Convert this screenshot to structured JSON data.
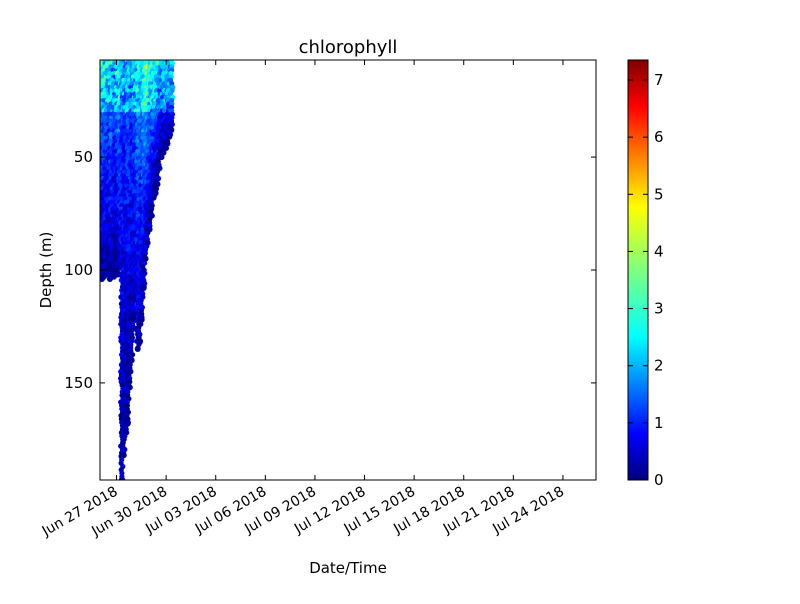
{
  "chart_data": {
    "type": "scatter",
    "title": "chlorophyll",
    "xlabel": "Date/Time",
    "ylabel": "Depth (m)",
    "x_axis": {
      "type": "date",
      "range": [
        "2018-06-26",
        "2018-07-26"
      ],
      "tick_dates": [
        "2018-06-27",
        "2018-06-30",
        "2018-07-03",
        "2018-07-06",
        "2018-07-09",
        "2018-07-12",
        "2018-07-15",
        "2018-07-18",
        "2018-07-21",
        "2018-07-24"
      ],
      "tick_labels": [
        "Jun 27 2018",
        "Jun 30 2018",
        "Jul 03 2018",
        "Jul 06 2018",
        "Jul 09 2018",
        "Jul 12 2018",
        "Jul 15 2018",
        "Jul 18 2018",
        "Jul 21 2018",
        "Jul 24 2018"
      ]
    },
    "y_axis": {
      "range": [
        7,
        193
      ],
      "inverted": true,
      "ticks": [
        50,
        100,
        150
      ],
      "tick_labels": [
        "50",
        "100",
        "150"
      ]
    },
    "colorbar": {
      "colormap": "jet",
      "range": [
        0,
        7.35
      ],
      "ticks": [
        0,
        1,
        2,
        3,
        4,
        5,
        6,
        7
      ],
      "tick_labels": [
        "0",
        "1",
        "2",
        "3",
        "4",
        "5",
        "6",
        "7"
      ]
    },
    "profiles": [
      {
        "date": "2018-06-26",
        "max_depth": 102,
        "surface_value": 2.3
      },
      {
        "date": "2018-06-26.12",
        "max_depth": 104,
        "surface_value": 2.1
      },
      {
        "date": "2018-06-26.24",
        "max_depth": 103,
        "surface_value": 1.9
      },
      {
        "date": "2018-06-26.36",
        "max_depth": 100,
        "surface_value": 2.0
      },
      {
        "date": "2018-06-26.48",
        "max_depth": 102,
        "surface_value": 1.8
      },
      {
        "date": "2018-06-26.6",
        "max_depth": 104,
        "surface_value": 1.7
      },
      {
        "date": "2018-06-26.72",
        "max_depth": 101,
        "surface_value": 2.2
      },
      {
        "date": "2018-06-26.84",
        "max_depth": 103,
        "surface_value": 1.6
      },
      {
        "date": "2018-06-26.96",
        "max_depth": 100,
        "surface_value": 1.5
      },
      {
        "date": "2018-06-27.08",
        "max_depth": 102,
        "surface_value": 1.9
      },
      {
        "date": "2018-06-27.2",
        "max_depth": 99,
        "surface_value": 2.4
      },
      {
        "date": "2018-06-27.32",
        "max_depth": 193,
        "surface_value": 1.4
      },
      {
        "date": "2018-06-27.44",
        "max_depth": 182,
        "surface_value": 1.3
      },
      {
        "date": "2018-06-27.56",
        "max_depth": 172,
        "surface_value": 1.2
      },
      {
        "date": "2018-06-27.68",
        "max_depth": 168,
        "surface_value": 1.5
      },
      {
        "date": "2018-06-27.8",
        "max_depth": 152,
        "surface_value": 1.6
      },
      {
        "date": "2018-06-27.92",
        "max_depth": 140,
        "surface_value": 1.4
      },
      {
        "date": "2018-06-28.04",
        "max_depth": 126,
        "surface_value": 1.7
      },
      {
        "date": "2018-06-28.16",
        "max_depth": 113,
        "surface_value": 1.8
      },
      {
        "date": "2018-06-28.28",
        "max_depth": 135,
        "surface_value": 2.0
      },
      {
        "date": "2018-06-28.4",
        "max_depth": 132,
        "surface_value": 2.2
      },
      {
        "date": "2018-06-28.52",
        "max_depth": 122,
        "surface_value": 1.9
      },
      {
        "date": "2018-06-28.64",
        "max_depth": 108,
        "surface_value": 2.5
      },
      {
        "date": "2018-06-28.76",
        "max_depth": 95,
        "surface_value": 2.8
      },
      {
        "date": "2018-06-28.88",
        "max_depth": 88,
        "surface_value": 2.6
      },
      {
        "date": "2018-06-29",
        "max_depth": 82,
        "surface_value": 2.3
      },
      {
        "date": "2018-06-29.12",
        "max_depth": 76,
        "surface_value": 2.1
      },
      {
        "date": "2018-06-29.24",
        "max_depth": 68,
        "surface_value": 2.4
      },
      {
        "date": "2018-06-29.36",
        "max_depth": 66,
        "surface_value": 2.2
      },
      {
        "date": "2018-06-29.48",
        "max_depth": 62,
        "surface_value": 2.0
      },
      {
        "date": "2018-06-29.6",
        "max_depth": 55,
        "surface_value": 1.8
      },
      {
        "date": "2018-06-29.72",
        "max_depth": 50,
        "surface_value": 1.6
      },
      {
        "date": "2018-06-29.84",
        "max_depth": 48,
        "surface_value": 1.9
      },
      {
        "date": "2018-06-29.96",
        "max_depth": 46,
        "surface_value": 1.7
      },
      {
        "date": "2018-06-30.08",
        "max_depth": 44,
        "surface_value": 1.8
      },
      {
        "date": "2018-06-30.2",
        "max_depth": 41,
        "surface_value": 1.5
      },
      {
        "date": "2018-06-30.32",
        "max_depth": 38,
        "surface_value": 1.9
      }
    ]
  }
}
